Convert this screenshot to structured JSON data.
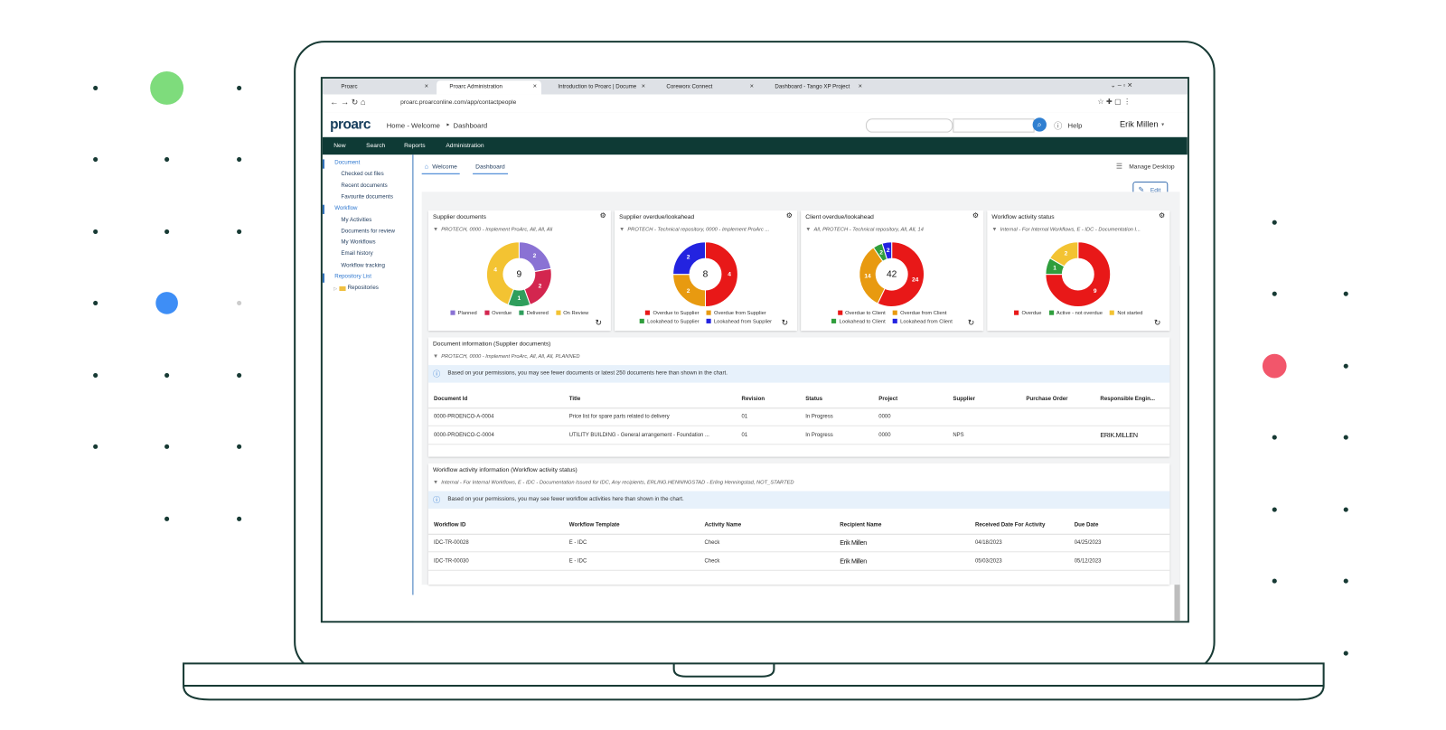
{
  "browser": {
    "tabs": [
      "Proarc",
      "Proarc Administration",
      "Introduction to Proarc | Docume",
      "Coreworx Connect",
      "Dashboard - Tango XP Project"
    ],
    "url": "proarc.proarconline.com/app/contactpeople"
  },
  "header": {
    "logo": "proarc",
    "breadcrumb": [
      "Home - Welcome",
      "Dashboard"
    ],
    "help": "Help",
    "user": "Erik Millen"
  },
  "nav": [
    "New",
    "Search",
    "Reports",
    "Administration"
  ],
  "sidebar": [
    {
      "title": "Document",
      "items": [
        "Checked out files",
        "Recent documents",
        "Favourite documents"
      ]
    },
    {
      "title": "Workflow",
      "items": [
        "My Activities",
        "Documents for review",
        "My Workflows",
        "Email history",
        "Workflow tracking"
      ]
    },
    {
      "title": "Repository List",
      "items": [
        "Repositories"
      ]
    }
  ],
  "page_tabs": [
    "Welcome",
    "Dashboard"
  ],
  "manage_desktop": "Manage Desktop",
  "edit": "Edit",
  "chart_data": [
    {
      "type": "donut",
      "title": "Supplier documents",
      "filter": "PROTECH, 0000 - Implement ProArc, All, All, All",
      "total": 9,
      "categories": [
        "Planned",
        "Overdue",
        "Delivered",
        "On Review"
      ],
      "values": [
        2,
        2,
        1,
        4
      ],
      "colors": [
        "#8a72d4",
        "#d3264f",
        "#2f9e5c",
        "#f3c332"
      ]
    },
    {
      "type": "donut",
      "title": "Supplier overdue/lookahead",
      "filter": "PROTECH - Technical repository, 0000 - Implement ProArc ...",
      "total": 8,
      "categories": [
        "Overdue to Supplier",
        "Overdue from Supplier",
        "Lookahead to Supplier",
        "Lookahead from Supplier"
      ],
      "values": [
        4,
        2,
        0,
        2
      ],
      "colors": [
        "#e81818",
        "#e89a10",
        "#2f9e3c",
        "#2323e0"
      ]
    },
    {
      "type": "donut",
      "title": "Client overdue/lookahead",
      "filter": "All, PROTECH - Technical repository, All, All, 14",
      "total": 42,
      "categories": [
        "Overdue to Client",
        "Overdue from Client",
        "Lookahead to Client",
        "Lookahead from Client"
      ],
      "values": [
        24,
        14,
        2,
        2
      ],
      "colors": [
        "#e81818",
        "#e89a10",
        "#2f9e3c",
        "#2323e0"
      ]
    },
    {
      "type": "donut",
      "title": "Workflow activity status",
      "filter": "Internal - For Internal Workflows, E - IDC - Documentation I...",
      "categories": [
        "Overdue",
        "Active - not overdue",
        "Not started"
      ],
      "values": [
        9,
        1,
        2
      ],
      "colors": [
        "#e81818",
        "#2f9e3c",
        "#f3c332"
      ]
    }
  ],
  "tables": [
    {
      "title": "Document information (Supplier documents)",
      "filter": "PROTECH, 0000 - Implement ProArc, All, All, All, PLANNED",
      "notice": "Based on your permissions, you may see fewer documents or latest 250 documents here than shown in the chart.",
      "columns": [
        "Document Id",
        "Title",
        "Revision",
        "Status",
        "Project",
        "Supplier",
        "Purchase Order",
        "Responsible Engin..."
      ],
      "rows": [
        [
          "0000-PROENCO-A-0004",
          "Price list for spare parts related to delivery",
          "01",
          "In Progress",
          "0000",
          null,
          null,
          null
        ],
        [
          "0000-PROENCO-C-0004",
          "UTILITY BUILDING - General arrangement - Foundation ...",
          "01",
          "In Progress",
          "0000",
          "NPS",
          null,
          "ERIK.MILLEN"
        ]
      ]
    },
    {
      "title": "Workflow activity information (Workflow activity status)",
      "filter": "Internal - For Internal Workflows, E - IDC - Documentation Issued for IDC, Any recipients, ERLING.HENNINGSTAD - Erling Henningstad, NOT_STARTED",
      "notice": "Based on your permissions, you may see fewer workflow activities here than shown in the chart.",
      "columns": [
        "Workflow ID",
        "Workflow Template",
        "Activity Name",
        "Recipient Name",
        "Received Date For Activity",
        "Due Date"
      ],
      "rows": [
        [
          "IDC-TR-00028",
          "E - IDC",
          "Check",
          "Erik Millen",
          "04/18/2023",
          "04/25/2023"
        ],
        [
          "IDC-TR-00030",
          "E - IDC",
          "Check",
          "Erik Millen",
          "05/03/2023",
          "05/12/2023"
        ]
      ]
    }
  ]
}
